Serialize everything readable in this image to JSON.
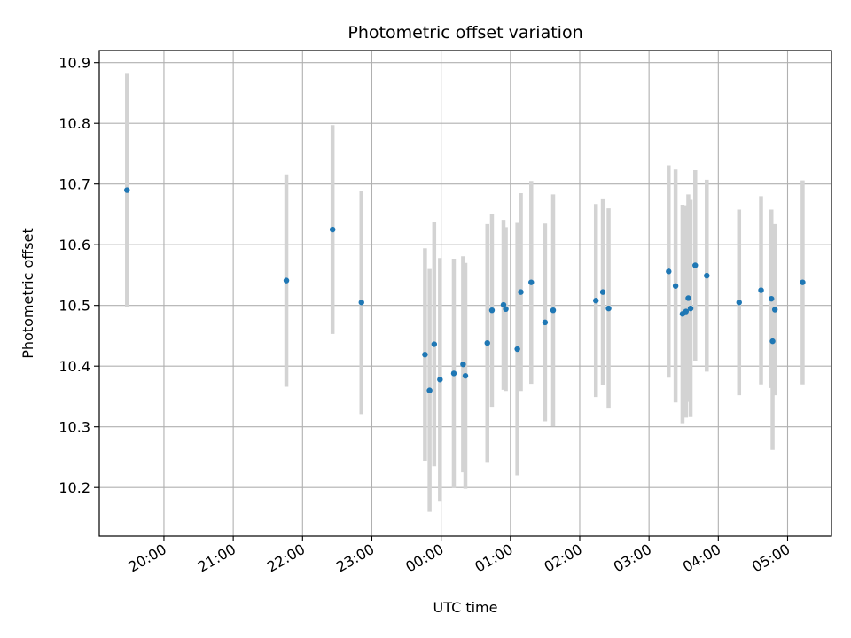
{
  "chart_data": {
    "type": "scatter",
    "title": "Photometric offset variation",
    "xlabel": "UTC time",
    "ylabel": "Photometric offset",
    "grid": true,
    "x_unit": "UTC clock time; values after midnight belong to the next day",
    "xlim": [
      "19:04",
      "05:38"
    ],
    "ylim": [
      10.12,
      10.92
    ],
    "x_ticks": [
      "20:00",
      "21:00",
      "22:00",
      "23:00",
      "00:00",
      "01:00",
      "02:00",
      "03:00",
      "04:00",
      "05:00"
    ],
    "y_ticks": [
      "10.2",
      "10.3",
      "10.4",
      "10.5",
      "10.6",
      "10.7",
      "10.8",
      "10.9"
    ],
    "colors": {
      "point": "#1f77b4",
      "errorbar": "#d3d3d3",
      "grid": "#b0b0b0"
    },
    "series": [
      {
        "points": [
          {
            "t": "19:28",
            "y": 10.69,
            "err": 0.193
          },
          {
            "t": "21:46",
            "y": 10.541,
            "err": 0.175
          },
          {
            "t": "22:26",
            "y": 10.625,
            "err": 0.172
          },
          {
            "t": "22:51",
            "y": 10.505,
            "err": 0.184
          },
          {
            "t": "23:46",
            "y": 10.419,
            "err": 0.175
          },
          {
            "t": "23:50",
            "y": 10.36,
            "err": 0.2
          },
          {
            "t": "23:54",
            "y": 10.436,
            "err": 0.201
          },
          {
            "t": "23:59",
            "y": 10.378,
            "err": 0.2
          },
          {
            "t": "00:11",
            "y": 10.388,
            "err": 0.189
          },
          {
            "t": "00:19",
            "y": 10.403,
            "err": 0.178
          },
          {
            "t": "00:21",
            "y": 10.384,
            "err": 0.186
          },
          {
            "t": "00:40",
            "y": 10.438,
            "err": 0.196
          },
          {
            "t": "00:44",
            "y": 10.492,
            "err": 0.159
          },
          {
            "t": "00:54",
            "y": 10.501,
            "err": 0.14
          },
          {
            "t": "00:56",
            "y": 10.494,
            "err": 0.135
          },
          {
            "t": "01:06",
            "y": 10.428,
            "err": 0.208
          },
          {
            "t": "01:09",
            "y": 10.522,
            "err": 0.163
          },
          {
            "t": "01:18",
            "y": 10.538,
            "err": 0.167
          },
          {
            "t": "01:30",
            "y": 10.472,
            "err": 0.163
          },
          {
            "t": "01:37",
            "y": 10.492,
            "err": 0.191
          },
          {
            "t": "02:14",
            "y": 10.508,
            "err": 0.159
          },
          {
            "t": "02:20",
            "y": 10.522,
            "err": 0.153
          },
          {
            "t": "02:25",
            "y": 10.495,
            "err": 0.165
          },
          {
            "t": "03:17",
            "y": 10.556,
            "err": 0.175
          },
          {
            "t": "03:23",
            "y": 10.532,
            "err": 0.192
          },
          {
            "t": "03:29",
            "y": 10.486,
            "err": 0.18
          },
          {
            "t": "03:32",
            "y": 10.49,
            "err": 0.175
          },
          {
            "t": "03:34",
            "y": 10.512,
            "err": 0.171
          },
          {
            "t": "03:36",
            "y": 10.495,
            "err": 0.179
          },
          {
            "t": "03:40",
            "y": 10.566,
            "err": 0.157
          },
          {
            "t": "03:50",
            "y": 10.549,
            "err": 0.158
          },
          {
            "t": "04:18",
            "y": 10.505,
            "err": 0.153
          },
          {
            "t": "04:37",
            "y": 10.525,
            "err": 0.155
          },
          {
            "t": "04:46",
            "y": 10.511,
            "err": 0.147
          },
          {
            "t": "04:47",
            "y": 10.441,
            "err": 0.179
          },
          {
            "t": "04:49",
            "y": 10.493,
            "err": 0.141
          },
          {
            "t": "05:13",
            "y": 10.538,
            "err": 0.168
          }
        ]
      }
    ]
  }
}
